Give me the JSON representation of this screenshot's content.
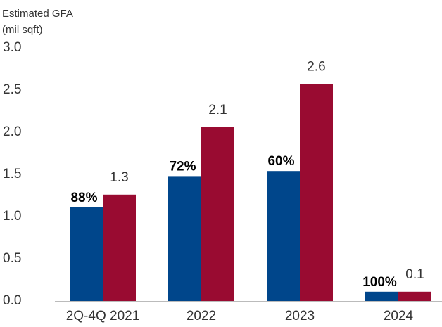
{
  "chart_data": {
    "type": "bar",
    "ylabel": "Estimated GFA",
    "yunit": "(mil sqft)",
    "categories": [
      "2Q-4Q 2021",
      "2022",
      "2023",
      "2024"
    ],
    "series": [
      {
        "color": "#00468b",
        "values": [
          1.11,
          1.48,
          1.54,
          0.11
        ],
        "annotations": [
          "88%",
          "72%",
          "60%",
          "100%"
        ]
      },
      {
        "color": "#990b31",
        "values": [
          1.26,
          2.06,
          2.57,
          0.11
        ],
        "value_labels": [
          "1.3",
          "2.1",
          "2.6",
          "0.1"
        ]
      }
    ],
    "ylim": [
      0,
      3
    ],
    "yticks": [
      {
        "value": 0,
        "label": "0.0"
      },
      0.5,
      {
        "value": 1,
        "label": "1.0"
      },
      1.5,
      {
        "value": 2,
        "label": "2.0"
      },
      2.5,
      {
        "value": 3,
        "label": "3.0"
      }
    ],
    "grid": false
  }
}
